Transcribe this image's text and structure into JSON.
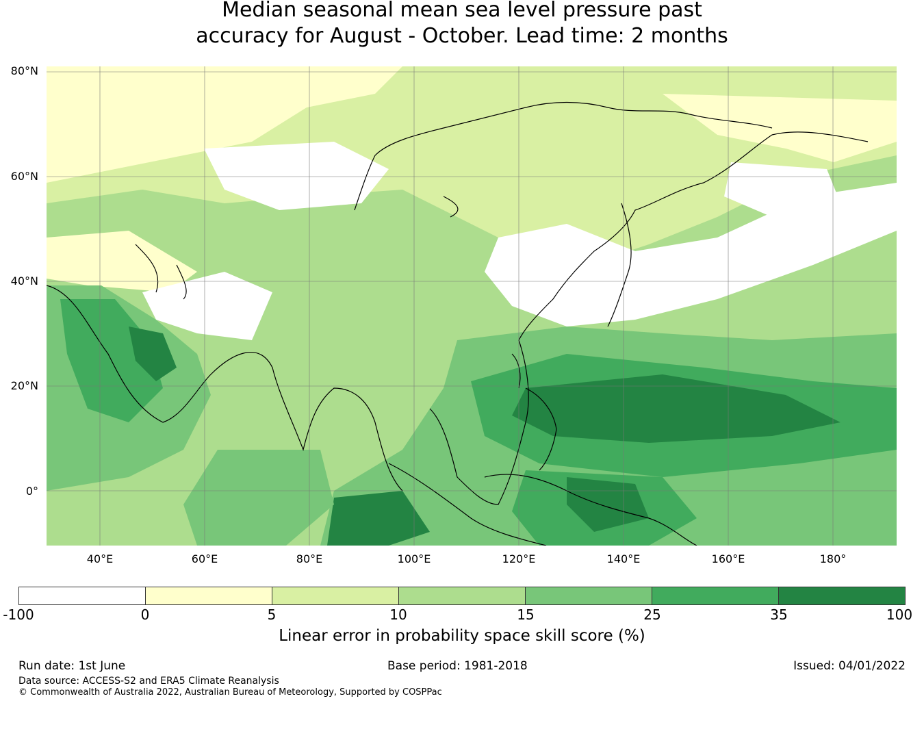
{
  "title": {
    "line1": "Median seasonal mean sea level pressure past",
    "line2": "accuracy for August - October. Lead time: 2 months"
  },
  "map": {
    "lat_labels": [
      "80°N",
      "60°N",
      "40°N",
      "20°N",
      "0°"
    ],
    "lon_labels": [
      "40°E",
      "60°E",
      "80°E",
      "100°E",
      "120°E",
      "140°E",
      "160°E",
      "180°"
    ],
    "lon_range": [
      30,
      192
    ],
    "lat_range": [
      -10,
      80
    ]
  },
  "colorbar": {
    "ticks": [
      "-100",
      "0",
      "5",
      "10",
      "15",
      "25",
      "35",
      "100"
    ],
    "colors": [
      "#ffffff",
      "#ffffcc",
      "#d9f0a3",
      "#addd8e",
      "#78c679",
      "#41ab5d",
      "#238443"
    ],
    "label": "Linear error in probability space skill score (%)"
  },
  "footer": {
    "run_date": "Run date: 1st June",
    "base_period": "Base period: 1981-2018",
    "issued": "Issued: 04/01/2022",
    "data_source": "Data source: ACCESS-S2 and ERA5 Climate Reanalysis",
    "copyright": "© Commonwealth of Australia 2022, Australian Bureau of Meteorology, Supported by COSPPac"
  }
}
